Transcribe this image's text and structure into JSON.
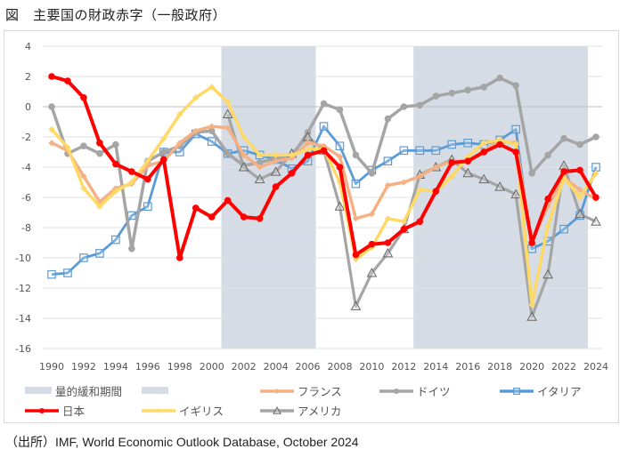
{
  "title": "図　主要国の財政赤字（一般政府）",
  "source": "（出所）IMF, World Economic Outlook Database, October 2024",
  "chart_data": {
    "type": "line",
    "title": "図　主要国の財政赤字（一般政府）",
    "xlabel": "",
    "ylabel": "",
    "ylim": [
      -16,
      4
    ],
    "yticks": [
      4,
      2,
      0,
      -2,
      -4,
      -6,
      -8,
      -10,
      -12,
      -14,
      -16
    ],
    "xlim": [
      1990,
      2024
    ],
    "xticks": [
      1990,
      1992,
      1994,
      1996,
      1998,
      2000,
      2002,
      2004,
      2006,
      2008,
      2010,
      2012,
      2014,
      2016,
      2018,
      2020,
      2022,
      2024
    ],
    "grid": true,
    "legend_position": "bottom",
    "shaded_periods": {
      "name": "量的緩和期間",
      "color": "#d6dce5",
      "ranges": [
        [
          2000.6,
          2006.5
        ],
        [
          2012.6,
          2023.5
        ]
      ]
    },
    "x": [
      1990,
      1991,
      1992,
      1993,
      1994,
      1995,
      1996,
      1997,
      1998,
      1999,
      2000,
      2001,
      2002,
      2003,
      2004,
      2005,
      2006,
      2007,
      2008,
      2009,
      2010,
      2011,
      2012,
      2013,
      2014,
      2015,
      2016,
      2017,
      2018,
      2019,
      2020,
      2021,
      2022,
      2023,
      2024
    ],
    "series": [
      {
        "name": "フランス",
        "color": "#f4b183",
        "marker": "diamond",
        "values": [
          -2.4,
          -2.9,
          -4.6,
          -6.3,
          -5.4,
          -5.1,
          -3.9,
          -3.6,
          -2.4,
          -1.6,
          -1.3,
          -1.4,
          -3.2,
          -4.0,
          -3.6,
          -3.4,
          -2.4,
          -2.6,
          -3.3,
          -7.4,
          -7.1,
          -5.2,
          -5.0,
          -4.6,
          -4.0,
          -3.6,
          -3.6,
          -2.9,
          -2.3,
          -2.4,
          -8.9,
          -6.6,
          -4.7,
          -5.5,
          -6.1
        ]
      },
      {
        "name": "ドイツ",
        "color": "#a5a5a5",
        "marker": "circle",
        "values": [
          0.0,
          -3.1,
          -2.6,
          -3.1,
          -2.5,
          -9.4,
          -3.6,
          -3.0,
          -2.6,
          -1.7,
          -1.6,
          -3.1,
          -3.9,
          -3.7,
          -3.4,
          -3.3,
          -1.7,
          0.2,
          -0.2,
          -3.2,
          -4.4,
          -0.8,
          0.0,
          0.1,
          0.7,
          0.9,
          1.1,
          1.3,
          1.9,
          1.4,
          -4.4,
          -3.2,
          -2.1,
          -2.5,
          -2.0
        ]
      },
      {
        "name": "イタリア",
        "color": "#5b9bd5",
        "marker": "square",
        "values": [
          -11.1,
          -11.0,
          -10.0,
          -9.7,
          -8.8,
          -7.2,
          -6.6,
          -3.0,
          -3.0,
          -1.8,
          -2.3,
          -3.1,
          -2.9,
          -3.2,
          -3.5,
          -4.1,
          -3.6,
          -1.3,
          -2.6,
          -5.1,
          -4.2,
          -3.6,
          -2.9,
          -2.9,
          -2.9,
          -2.5,
          -2.4,
          -2.5,
          -2.2,
          -1.5,
          -9.4,
          -8.9,
          -8.1,
          -7.2,
          -4.0
        ]
      },
      {
        "name": "日本",
        "color": "#ff0000",
        "marker": "circle",
        "values": [
          2.0,
          1.7,
          0.6,
          -2.4,
          -3.8,
          -4.3,
          -4.8,
          -3.5,
          -10.0,
          -6.7,
          -7.3,
          -6.2,
          -7.3,
          -7.4,
          -5.3,
          -4.4,
          -3.2,
          -2.9,
          -4.0,
          -9.8,
          -9.1,
          -9.0,
          -8.1,
          -7.6,
          -5.6,
          -3.7,
          -3.6,
          -3.0,
          -2.5,
          -3.0,
          -9.0,
          -6.1,
          -4.3,
          -4.2,
          -6.0
        ]
      },
      {
        "name": "イギリス",
        "color": "#ffd966",
        "marker": "diamond",
        "values": [
          -1.5,
          -2.7,
          -5.4,
          -6.6,
          -5.6,
          -5.0,
          -3.6,
          -2.1,
          -0.5,
          0.6,
          1.3,
          0.3,
          -2.0,
          -3.2,
          -3.2,
          -3.2,
          -2.8,
          -2.8,
          -5.0,
          -10.1,
          -9.3,
          -7.4,
          -7.6,
          -5.5,
          -5.6,
          -4.6,
          -3.3,
          -2.4,
          -2.2,
          -2.5,
          -13.1,
          -7.9,
          -4.7,
          -6.0,
          -4.4
        ]
      },
      {
        "name": "アメリカ",
        "color": "#a5a5a5",
        "marker": "triangle",
        "values": [
          null,
          null,
          null,
          null,
          null,
          null,
          null,
          null,
          null,
          null,
          null,
          -0.5,
          -4.0,
          -4.8,
          -4.3,
          -3.1,
          -2.0,
          -2.9,
          -6.6,
          -13.2,
          -11.0,
          -9.7,
          -8.1,
          -4.5,
          -4.0,
          -3.5,
          -4.4,
          -4.8,
          -5.3,
          -5.8,
          -13.9,
          -11.1,
          -3.9,
          -7.1,
          -7.6
        ]
      }
    ],
    "legend": [
      {
        "label": "量的緩和期間",
        "type": "area",
        "color": "#d6dce5"
      },
      {
        "label": "",
        "type": "area",
        "color": "#d6dce5"
      },
      {
        "label": "フランス",
        "series": 0
      },
      {
        "label": "ドイツ",
        "series": 1
      },
      {
        "label": "イタリア",
        "series": 2
      },
      {
        "label": "日本",
        "series": 3
      },
      {
        "label": "イギリス",
        "series": 4
      },
      {
        "label": "アメリカ",
        "series": 5
      }
    ]
  }
}
